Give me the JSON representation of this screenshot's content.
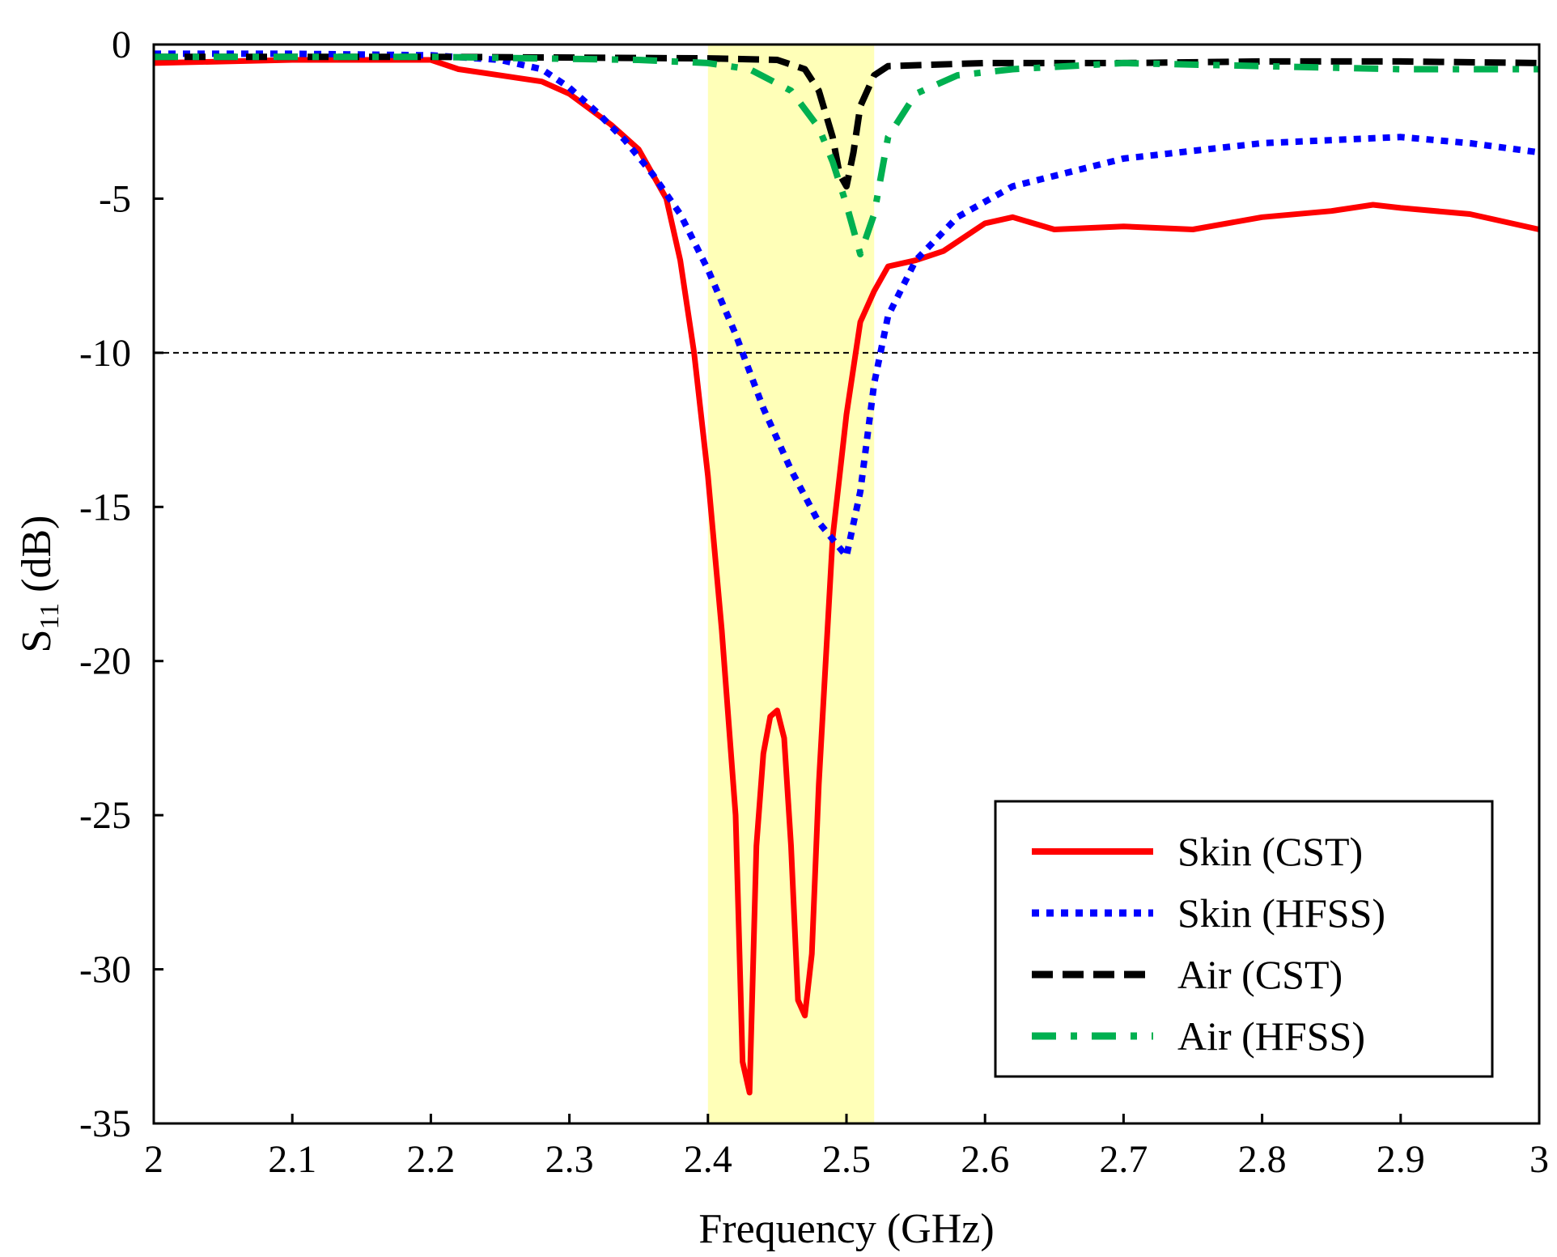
{
  "chart_data": {
    "type": "line",
    "title": "",
    "xlabel": "Frequency (GHz)",
    "ylabel": {
      "main": "S",
      "sub": "11",
      "unit": " (dB)"
    },
    "xlim": [
      2,
      3
    ],
    "ylim": [
      -35,
      0
    ],
    "x_ticks": [
      2,
      2.1,
      2.2,
      2.3,
      2.4,
      2.5,
      2.6,
      2.7,
      2.8,
      2.9,
      3
    ],
    "x_tick_labels": [
      "2",
      "2.1",
      "2.2",
      "2.3",
      "2.4",
      "2.5",
      "2.6",
      "2.7",
      "2.8",
      "2.9",
      "3"
    ],
    "y_ticks": [
      0,
      -5,
      -10,
      -15,
      -20,
      -25,
      -30,
      -35
    ],
    "y_tick_labels": [
      "0",
      "-5",
      "-10",
      "-15",
      "-20",
      "-25",
      "-30",
      "-35"
    ],
    "reference_line": {
      "y": -10,
      "style": "dashed"
    },
    "highlight_band": {
      "x_start": 2.4,
      "x_end": 2.52,
      "color": "#ffffb8"
    },
    "legend_position": "bottom-right",
    "series": [
      {
        "name": "Skin (CST)",
        "color": "#ff0000",
        "style": "solid",
        "x": [
          2.0,
          2.1,
          2.2,
          2.22,
          2.25,
          2.28,
          2.3,
          2.33,
          2.35,
          2.37,
          2.38,
          2.39,
          2.4,
          2.41,
          2.42,
          2.425,
          2.43,
          2.435,
          2.44,
          2.445,
          2.45,
          2.455,
          2.46,
          2.465,
          2.47,
          2.475,
          2.48,
          2.49,
          2.5,
          2.51,
          2.52,
          2.53,
          2.55,
          2.57,
          2.6,
          2.62,
          2.65,
          2.7,
          2.75,
          2.8,
          2.85,
          2.88,
          2.9,
          2.95,
          3.0
        ],
        "y": [
          -0.6,
          -0.5,
          -0.5,
          -0.8,
          -1.0,
          -1.2,
          -1.6,
          -2.6,
          -3.4,
          -5.0,
          -7.0,
          -10.0,
          -14.0,
          -19.0,
          -25.0,
          -33.0,
          -34.0,
          -26.0,
          -23.0,
          -21.8,
          -21.6,
          -22.5,
          -26.0,
          -31.0,
          -31.5,
          -29.5,
          -24.0,
          -16.0,
          -12.0,
          -9.0,
          -8.0,
          -7.2,
          -7.0,
          -6.7,
          -5.8,
          -5.6,
          -6.0,
          -5.9,
          -6.0,
          -5.6,
          -5.4,
          -5.2,
          -5.3,
          -5.5,
          -6.0
        ]
      },
      {
        "name": "Skin (HFSS)",
        "color": "#0000ff",
        "style": "dotted",
        "x": [
          2.0,
          2.1,
          2.2,
          2.25,
          2.28,
          2.3,
          2.32,
          2.34,
          2.36,
          2.38,
          2.4,
          2.42,
          2.44,
          2.46,
          2.48,
          2.5,
          2.51,
          2.52,
          2.53,
          2.55,
          2.58,
          2.62,
          2.7,
          2.8,
          2.9,
          2.95,
          3.0
        ],
        "y": [
          -0.3,
          -0.3,
          -0.35,
          -0.5,
          -0.8,
          -1.4,
          -2.2,
          -3.1,
          -4.2,
          -5.5,
          -7.3,
          -9.4,
          -11.8,
          -13.8,
          -15.5,
          -16.6,
          -14.5,
          -11.0,
          -8.8,
          -7.0,
          -5.6,
          -4.6,
          -3.7,
          -3.2,
          -3.0,
          -3.2,
          -3.5
        ]
      },
      {
        "name": "Air (CST)",
        "color": "#000000",
        "style": "dashed",
        "x": [
          2.0,
          2.2,
          2.4,
          2.45,
          2.47,
          2.48,
          2.49,
          2.495,
          2.5,
          2.505,
          2.51,
          2.52,
          2.53,
          2.6,
          2.7,
          2.8,
          2.9,
          3.0
        ],
        "y": [
          -0.4,
          -0.4,
          -0.45,
          -0.5,
          -0.8,
          -1.5,
          -3.0,
          -4.2,
          -4.6,
          -3.5,
          -2.0,
          -1.0,
          -0.7,
          -0.6,
          -0.6,
          -0.55,
          -0.55,
          -0.6
        ]
      },
      {
        "name": "Air (HFSS)",
        "color": "#00b050",
        "style": "dashdot",
        "x": [
          2.0,
          2.2,
          2.35,
          2.4,
          2.43,
          2.46,
          2.48,
          2.49,
          2.5,
          2.51,
          2.52,
          2.53,
          2.55,
          2.58,
          2.62,
          2.7,
          2.8,
          2.9,
          3.0
        ],
        "y": [
          -0.4,
          -0.4,
          -0.5,
          -0.6,
          -0.8,
          -1.5,
          -2.7,
          -3.8,
          -5.2,
          -6.8,
          -5.5,
          -3.0,
          -1.6,
          -1.0,
          -0.8,
          -0.6,
          -0.7,
          -0.8,
          -0.8
        ]
      }
    ]
  }
}
